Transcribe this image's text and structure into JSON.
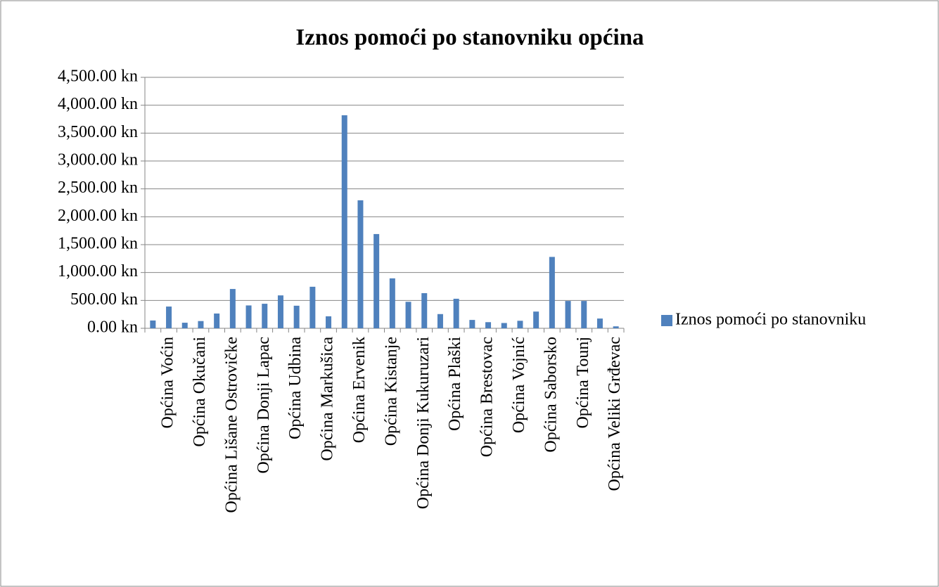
{
  "chart_data": {
    "type": "bar",
    "title": "Iznos pomoći po stanovniku općina",
    "categories": [
      null,
      "Općina Voćin",
      null,
      "Općina Okučani",
      null,
      "Općina Lišane Ostrovičke",
      null,
      "Općina Donji Lapac",
      null,
      "Općina Udbina",
      null,
      "Općina Markušica",
      null,
      "Općina Ervenik",
      null,
      "Općina Kistanje",
      null,
      "Općina Donji Kukuruzari",
      null,
      "Općina Plaški",
      null,
      "Općina Brestovac",
      null,
      "Općina Vojnić",
      null,
      "Općina Saborsko",
      null,
      "Općina Tounj",
      null,
      "Općina Veliki Grđevac"
    ],
    "series": [
      {
        "name": "Iznos pomoći po stanovniku",
        "color": "#4f81bd",
        "values": [
          140,
          390,
          100,
          130,
          265,
          705,
          410,
          440,
          590,
          405,
          745,
          215,
          3820,
          2295,
          1690,
          895,
          475,
          630,
          255,
          530,
          150,
          110,
          95,
          135,
          300,
          1280,
          490,
          490,
          175,
          35
        ]
      }
    ],
    "ylim": [
      0,
      4500
    ],
    "yticks": [
      {
        "value": 0,
        "label": "0.00 kn"
      },
      {
        "value": 500,
        "label": "500.00 kn"
      },
      {
        "value": 1000,
        "label": "1,000.00 kn"
      },
      {
        "value": 1500,
        "label": "1,500.00 kn"
      },
      {
        "value": 2000,
        "label": "2,000.00 kn"
      },
      {
        "value": 2500,
        "label": "2,500.00 kn"
      },
      {
        "value": 3000,
        "label": "3,000.00 kn"
      },
      {
        "value": 3500,
        "label": "3,500.00 kn"
      },
      {
        "value": 4000,
        "label": "4,000.00 kn"
      },
      {
        "value": 4500,
        "label": "4,500.00 kn"
      }
    ],
    "grid": true,
    "legend": "right"
  }
}
